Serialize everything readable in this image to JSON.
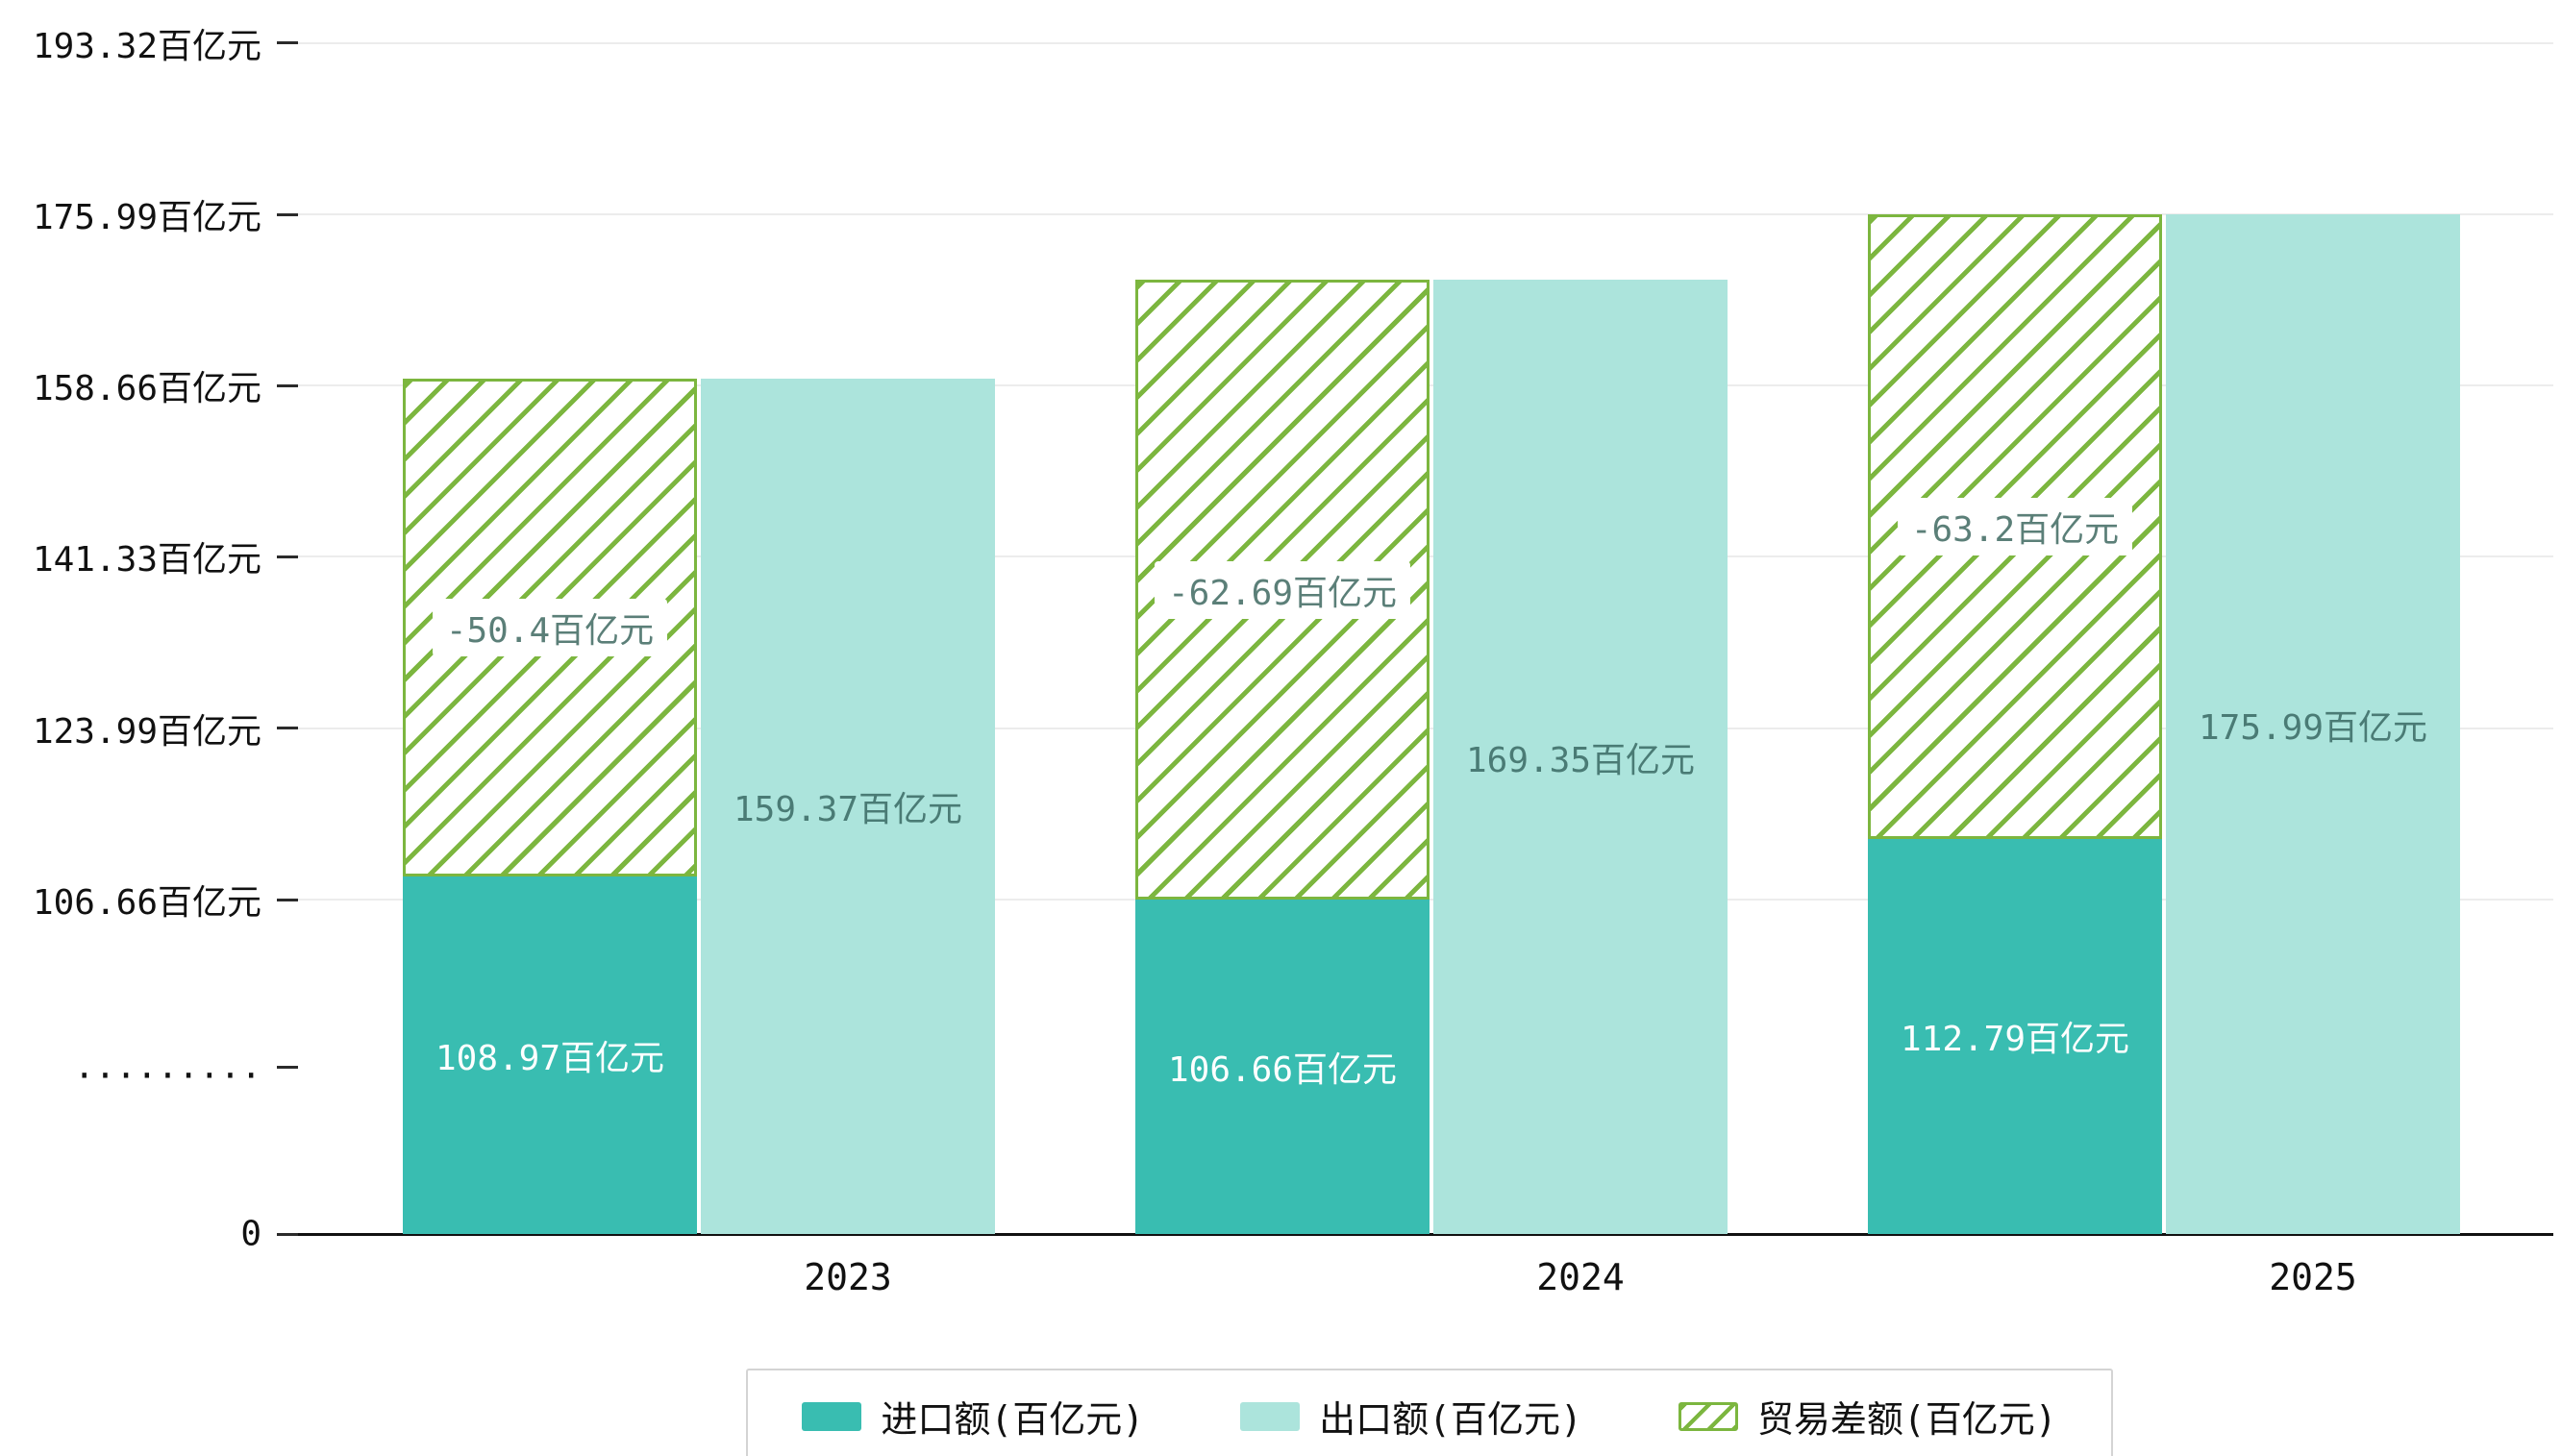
{
  "chart_data": {
    "type": "bar",
    "unit": "百亿元",
    "categories": [
      "2023",
      "2024",
      "2025"
    ],
    "series": [
      {
        "name": "进口额(百亿元)",
        "values": [
          108.97,
          106.66,
          112.79
        ],
        "labels": [
          "108.97百亿元",
          "106.66百亿元",
          "112.79百亿元"
        ],
        "color": "#39bdb1",
        "label_color": "#ffffff",
        "style": "solid"
      },
      {
        "name": "出口额(百亿元)",
        "values": [
          159.37,
          169.35,
          175.99
        ],
        "labels": [
          "159.37百亿元",
          "169.35百亿元",
          "175.99百亿元"
        ],
        "color": "#ace4dc",
        "label_color": "#4a7b75",
        "style": "solid"
      },
      {
        "name": "贸易差额(百亿元)",
        "values": [
          -50.4,
          -62.69,
          -63.2
        ],
        "labels": [
          "-50.4百亿元",
          "-62.69百亿元",
          "-63.2百亿元"
        ],
        "color": "#7cb63f",
        "label_color": "#5b7f78",
        "style": "hatch"
      }
    ],
    "y_ticks": [
      {
        "label": "193.32百亿元",
        "value": 193.32
      },
      {
        "label": "175.99百亿元",
        "value": 175.99
      },
      {
        "label": "158.66百亿元",
        "value": 158.66
      },
      {
        "label": "141.33百亿元",
        "value": 141.33
      },
      {
        "label": "123.99百亿元",
        "value": 123.99
      },
      {
        "label": "106.66百亿元",
        "value": 106.66
      },
      {
        "label": ".........",
        "value": null
      },
      {
        "label": "0",
        "value": 0
      }
    ],
    "axis_break": {
      "between": [
        0,
        106.66
      ]
    },
    "ylim": [
      0,
      196
    ],
    "grid": true,
    "legend_position": "bottom",
    "title": "",
    "xlabel": "",
    "ylabel": ""
  }
}
